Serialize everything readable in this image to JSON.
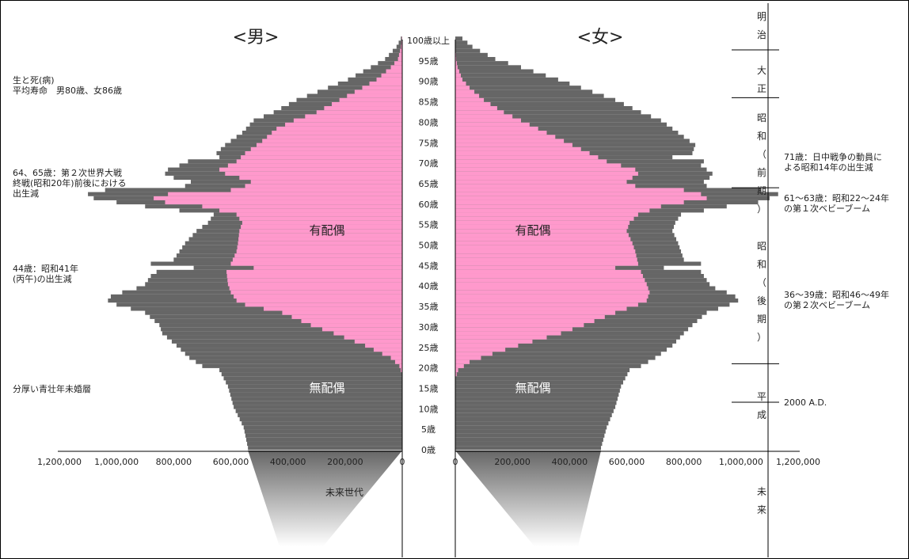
{
  "chart_data": {
    "type": "bar",
    "orientation": "horizontal",
    "layout": "population-pyramid",
    "colors": {
      "married": "#ff99cc",
      "unmarried": "#666666",
      "grid": "#000000",
      "background": "#ffffff"
    },
    "panels": {
      "male": "<男>",
      "female": "<女>"
    },
    "series_labels": {
      "married": "有配偶",
      "unmarried": "無配偶"
    },
    "xlim": [
      0,
      1200000
    ],
    "x_ticks_left": [
      "1,200,000",
      "1,000,000",
      "800,000",
      "600,000",
      "400,000",
      "200,000",
      "0"
    ],
    "x_ticks_right": [
      "0",
      "200,000",
      "400,000",
      "600,000",
      "800,000",
      "1,000,000",
      "1,200,000"
    ],
    "x_tick_values": [
      1200000,
      1000000,
      800000,
      600000,
      400000,
      200000,
      0
    ],
    "age_ticks": [
      {
        "age": 0,
        "label": "0歳"
      },
      {
        "age": 5,
        "label": "5歳"
      },
      {
        "age": 10,
        "label": "10歳"
      },
      {
        "age": 15,
        "label": "15歳"
      },
      {
        "age": 20,
        "label": "20歳"
      },
      {
        "age": 25,
        "label": "25歳"
      },
      {
        "age": 30,
        "label": "30歳"
      },
      {
        "age": 35,
        "label": "35歳"
      },
      {
        "age": 40,
        "label": "40歳"
      },
      {
        "age": 45,
        "label": "45歳"
      },
      {
        "age": 50,
        "label": "50歳"
      },
      {
        "age": 55,
        "label": "55歳"
      },
      {
        "age": 60,
        "label": "60歳"
      },
      {
        "age": 65,
        "label": "65歳"
      },
      {
        "age": 70,
        "label": "70歳"
      },
      {
        "age": 75,
        "label": "75歳"
      },
      {
        "age": 80,
        "label": "80歳"
      },
      {
        "age": 85,
        "label": "85歳"
      },
      {
        "age": 90,
        "label": "90歳"
      },
      {
        "age": 95,
        "label": "95歳"
      },
      {
        "age": 100,
        "label": "100歳以上"
      }
    ],
    "male_total": [
      [
        0,
        540000
      ],
      [
        5,
        555000
      ],
      [
        10,
        590000
      ],
      [
        15,
        610000
      ],
      [
        19,
        640000
      ],
      [
        20,
        700000
      ],
      [
        22,
        745000
      ],
      [
        25,
        790000
      ],
      [
        28,
        840000
      ],
      [
        30,
        850000
      ],
      [
        33,
        900000
      ],
      [
        35,
        1000000
      ],
      [
        36,
        1030000
      ],
      [
        37,
        1020000
      ],
      [
        38,
        980000
      ],
      [
        39,
        930000
      ],
      [
        40,
        900000
      ],
      [
        42,
        880000
      ],
      [
        43,
        860000
      ],
      [
        44,
        730000
      ],
      [
        45,
        880000
      ],
      [
        46,
        800000
      ],
      [
        48,
        780000
      ],
      [
        50,
        760000
      ],
      [
        53,
        720000
      ],
      [
        55,
        680000
      ],
      [
        57,
        660000
      ],
      [
        59,
        900000
      ],
      [
        60,
        1000000
      ],
      [
        61,
        1080000
      ],
      [
        62,
        1100000
      ],
      [
        63,
        1040000
      ],
      [
        64,
        760000
      ],
      [
        65,
        740000
      ],
      [
        66,
        800000
      ],
      [
        67,
        830000
      ],
      [
        68,
        820000
      ],
      [
        69,
        780000
      ],
      [
        70,
        750000
      ],
      [
        71,
        640000
      ],
      [
        72,
        650000
      ],
      [
        74,
        620000
      ],
      [
        75,
        600000
      ],
      [
        77,
        560000
      ],
      [
        80,
        520000
      ],
      [
        82,
        450000
      ],
      [
        85,
        370000
      ],
      [
        88,
        260000
      ],
      [
        90,
        190000
      ],
      [
        93,
        110000
      ],
      [
        95,
        60000
      ],
      [
        98,
        20000
      ],
      [
        100,
        5000
      ]
    ],
    "male_married": [
      [
        0,
        0
      ],
      [
        18,
        0
      ],
      [
        20,
        10000
      ],
      [
        22,
        40000
      ],
      [
        25,
        130000
      ],
      [
        28,
        240000
      ],
      [
        30,
        320000
      ],
      [
        33,
        420000
      ],
      [
        35,
        550000
      ],
      [
        36,
        580000
      ],
      [
        38,
        600000
      ],
      [
        40,
        610000
      ],
      [
        43,
        615000
      ],
      [
        44,
        520000
      ],
      [
        45,
        600000
      ],
      [
        48,
        580000
      ],
      [
        50,
        575000
      ],
      [
        53,
        570000
      ],
      [
        55,
        560000
      ],
      [
        57,
        580000
      ],
      [
        59,
        700000
      ],
      [
        60,
        830000
      ],
      [
        61,
        870000
      ],
      [
        62,
        820000
      ],
      [
        63,
        600000
      ],
      [
        64,
        550000
      ],
      [
        65,
        530000
      ],
      [
        66,
        570000
      ],
      [
        67,
        620000
      ],
      [
        68,
        640000
      ],
      [
        69,
        610000
      ],
      [
        70,
        580000
      ],
      [
        72,
        550000
      ],
      [
        75,
        490000
      ],
      [
        78,
        440000
      ],
      [
        80,
        380000
      ],
      [
        82,
        300000
      ],
      [
        85,
        220000
      ],
      [
        88,
        140000
      ],
      [
        90,
        90000
      ],
      [
        93,
        40000
      ],
      [
        95,
        15000
      ],
      [
        98,
        4000
      ],
      [
        100,
        1000
      ]
    ],
    "female_total": [
      [
        0,
        510000
      ],
      [
        5,
        530000
      ],
      [
        10,
        560000
      ],
      [
        15,
        580000
      ],
      [
        19,
        610000
      ],
      [
        20,
        650000
      ],
      [
        22,
        700000
      ],
      [
        25,
        760000
      ],
      [
        28,
        800000
      ],
      [
        30,
        830000
      ],
      [
        33,
        880000
      ],
      [
        35,
        960000
      ],
      [
        36,
        990000
      ],
      [
        37,
        980000
      ],
      [
        38,
        950000
      ],
      [
        39,
        910000
      ],
      [
        40,
        890000
      ],
      [
        42,
        870000
      ],
      [
        43,
        860000
      ],
      [
        44,
        730000
      ],
      [
        45,
        860000
      ],
      [
        46,
        800000
      ],
      [
        48,
        790000
      ],
      [
        50,
        780000
      ],
      [
        53,
        760000
      ],
      [
        55,
        770000
      ],
      [
        57,
        790000
      ],
      [
        59,
        950000
      ],
      [
        60,
        1060000
      ],
      [
        61,
        1100000
      ],
      [
        62,
        1130000
      ],
      [
        63,
        1070000
      ],
      [
        64,
        880000
      ],
      [
        65,
        870000
      ],
      [
        66,
        890000
      ],
      [
        67,
        900000
      ],
      [
        68,
        880000
      ],
      [
        69,
        860000
      ],
      [
        70,
        870000
      ],
      [
        71,
        760000
      ],
      [
        72,
        830000
      ],
      [
        74,
        840000
      ],
      [
        75,
        820000
      ],
      [
        77,
        780000
      ],
      [
        80,
        720000
      ],
      [
        82,
        650000
      ],
      [
        85,
        560000
      ],
      [
        88,
        440000
      ],
      [
        90,
        360000
      ],
      [
        93,
        230000
      ],
      [
        95,
        140000
      ],
      [
        98,
        60000
      ],
      [
        100,
        25000
      ]
    ],
    "female_married": [
      [
        0,
        0
      ],
      [
        17,
        0
      ],
      [
        19,
        10000
      ],
      [
        21,
        50000
      ],
      [
        23,
        130000
      ],
      [
        25,
        220000
      ],
      [
        28,
        370000
      ],
      [
        30,
        450000
      ],
      [
        33,
        560000
      ],
      [
        35,
        640000
      ],
      [
        36,
        670000
      ],
      [
        38,
        680000
      ],
      [
        40,
        670000
      ],
      [
        43,
        650000
      ],
      [
        44,
        560000
      ],
      [
        45,
        640000
      ],
      [
        48,
        630000
      ],
      [
        50,
        620000
      ],
      [
        53,
        600000
      ],
      [
        55,
        610000
      ],
      [
        57,
        640000
      ],
      [
        59,
        720000
      ],
      [
        60,
        800000
      ],
      [
        61,
        880000
      ],
      [
        62,
        860000
      ],
      [
        63,
        800000
      ],
      [
        64,
        630000
      ],
      [
        65,
        600000
      ],
      [
        66,
        620000
      ],
      [
        67,
        640000
      ],
      [
        68,
        630000
      ],
      [
        69,
        580000
      ],
      [
        70,
        530000
      ],
      [
        72,
        470000
      ],
      [
        75,
        380000
      ],
      [
        78,
        290000
      ],
      [
        80,
        230000
      ],
      [
        82,
        170000
      ],
      [
        85,
        100000
      ],
      [
        88,
        50000
      ],
      [
        90,
        25000
      ],
      [
        93,
        8000
      ],
      [
        95,
        3000
      ],
      [
        98,
        800
      ],
      [
        100,
        200
      ]
    ],
    "annotations_left": [
      {
        "id": "lifespan",
        "lines": [
          "生と死(病)",
          "平均寿命　男80歳、女86歳"
        ]
      },
      {
        "id": "wwii",
        "lines": [
          "64、65歳：第２次世界大戦",
          "終戦(昭和20年)前後における",
          "出生減"
        ]
      },
      {
        "id": "hinoeuma",
        "lines": [
          "44歳：昭和41年",
          "(丙午)の出生減"
        ]
      },
      {
        "id": "youth",
        "lines": [
          "分厚い青壮年未婚層"
        ]
      }
    ],
    "annotations_right": [
      {
        "id": "sino",
        "lines": [
          "71歳：日中戦争の動員に",
          "よる昭和14年の出生減"
        ]
      },
      {
        "id": "boom1",
        "lines": [
          "61～63歳：昭和22～24年",
          "の第１次ベビーブーム"
        ]
      },
      {
        "id": "boom2",
        "lines": [
          "36～39歳：昭和46～49年",
          "の第２次ベビーブーム"
        ]
      },
      {
        "id": "year2000",
        "lines": [
          "2000 A.D."
        ]
      }
    ],
    "eras": [
      {
        "chars": [
          "明",
          "治"
        ],
        "age_from": 100,
        "age_to": 104
      },
      {
        "chars": [
          "大",
          "正"
        ],
        "age_from": 86,
        "age_to": 100
      },
      {
        "chars": [
          "昭",
          "和",
          "（",
          "前",
          "期",
          "）"
        ],
        "age_from": 64,
        "age_to": 86
      },
      {
        "chars": [
          "昭",
          "和",
          "（",
          "後",
          "期",
          "）"
        ],
        "age_from": 21,
        "age_to": 64
      },
      {
        "chars": [
          "平",
          "成"
        ],
        "age_from": 0,
        "age_to": 21
      },
      {
        "chars": [
          "未",
          "来"
        ],
        "age_from": -20,
        "age_to": 0
      }
    ],
    "future_label": "未来世代"
  }
}
